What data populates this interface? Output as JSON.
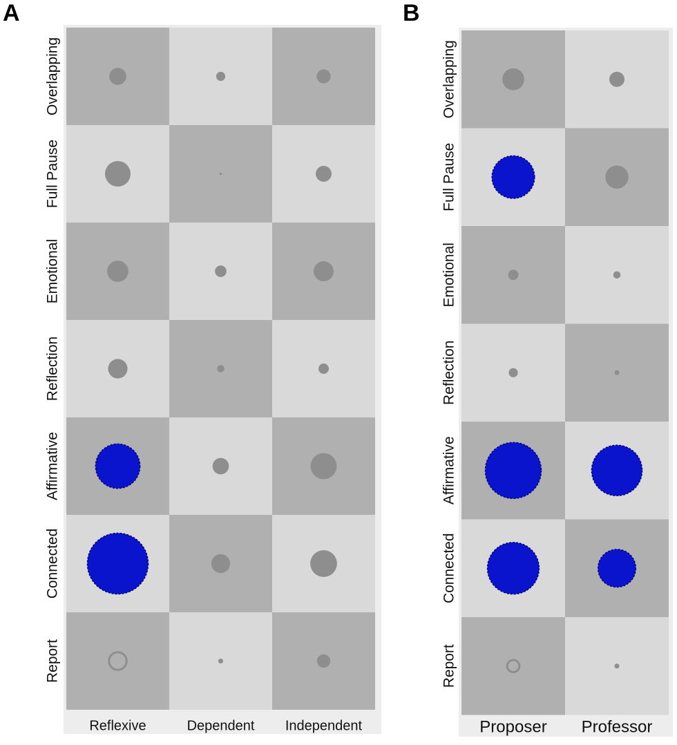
{
  "panel_labels": {
    "a": "A",
    "b": "B"
  },
  "colors": {
    "dark_cell": "#b0b0b0",
    "light_cell": "#d9d9d9",
    "frame": "#ededed",
    "gray_dot": "#8e8e8e",
    "highlight_dot": "#0a14cc",
    "highlight_dot_edge": "#00007a"
  },
  "chart_data": [
    {
      "type": "heatmap",
      "panel": "A",
      "rows": [
        "Overlapping",
        "Full Pause",
        "Emotional",
        "Reflection",
        "Affirmative",
        "Connected",
        "Report"
      ],
      "columns": [
        "Reflexive",
        "Dependent",
        "Independent"
      ],
      "dot_size_relative": [
        [
          0.28,
          0.15,
          0.23
        ],
        [
          0.42,
          0.04,
          0.26
        ],
        [
          0.35,
          0.19,
          0.33
        ],
        [
          0.32,
          0.12,
          0.17
        ],
        [
          0.73,
          0.27,
          0.43
        ],
        [
          1.0,
          0.31,
          0.44
        ],
        [
          0.29,
          0.08,
          0.22
        ]
      ],
      "highlighted": [
        [
          false,
          false,
          false
        ],
        [
          false,
          false,
          false
        ],
        [
          false,
          false,
          false
        ],
        [
          false,
          false,
          false
        ],
        [
          true,
          false,
          false
        ],
        [
          true,
          false,
          false
        ],
        [
          false,
          false,
          false
        ]
      ],
      "hollow": [
        [
          false,
          false,
          false
        ],
        [
          false,
          false,
          false
        ],
        [
          false,
          false,
          false
        ],
        [
          false,
          false,
          false
        ],
        [
          false,
          false,
          false
        ],
        [
          false,
          false,
          false
        ],
        [
          true,
          false,
          false
        ]
      ]
    },
    {
      "type": "heatmap",
      "panel": "B",
      "rows": [
        "Overlapping",
        "Full Pause",
        "Emotional",
        "Reflection",
        "Affirmative",
        "Connected",
        "Report"
      ],
      "columns": [
        "Proposer",
        "Professor"
      ],
      "dot_size_relative": [
        [
          0.36,
          0.25
        ],
        [
          0.7,
          0.38
        ],
        [
          0.17,
          0.12
        ],
        [
          0.15,
          0.08
        ],
        [
          0.92,
          0.83
        ],
        [
          0.85,
          0.62
        ],
        [
          0.2,
          0.08
        ]
      ],
      "highlighted": [
        [
          false,
          false
        ],
        [
          true,
          false
        ],
        [
          false,
          false
        ],
        [
          false,
          false
        ],
        [
          true,
          true
        ],
        [
          true,
          true
        ],
        [
          false,
          false
        ]
      ],
      "hollow": [
        [
          false,
          false
        ],
        [
          false,
          false
        ],
        [
          false,
          false
        ],
        [
          false,
          false
        ],
        [
          false,
          false
        ],
        [
          false,
          false
        ],
        [
          true,
          false
        ]
      ]
    }
  ]
}
